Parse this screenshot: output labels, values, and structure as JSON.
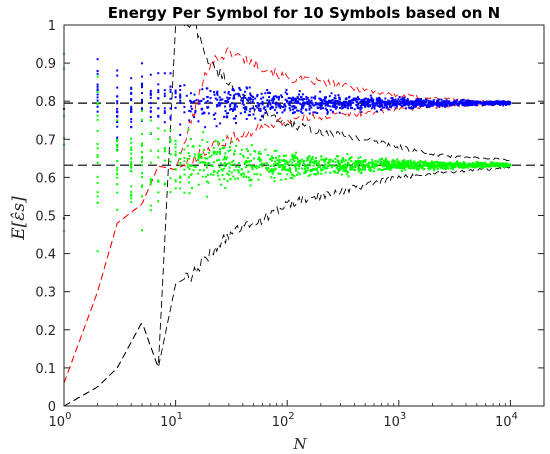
{
  "chart_data": {
    "type": "scatter",
    "title": "Energy Per Symbol for 10 Symbols based on N",
    "xlabel": "N",
    "ylabel": "E[ε̂s]",
    "xscale": "log",
    "xlim": [
      1,
      20000
    ],
    "ylim": [
      0,
      1
    ],
    "x_ticks": [
      {
        "value": 1,
        "base": "10",
        "exp": "0"
      },
      {
        "value": 10,
        "base": "10",
        "exp": "1"
      },
      {
        "value": 100,
        "base": "10",
        "exp": "2"
      },
      {
        "value": 1000,
        "base": "10",
        "exp": "3"
      },
      {
        "value": 10000,
        "base": "10",
        "exp": "4"
      }
    ],
    "y_ticks": [
      0,
      0.1,
      0.2,
      0.3,
      0.4,
      0.5,
      0.6,
      0.7,
      0.8,
      0.9,
      1
    ],
    "y_tick_labels": [
      "0",
      "0.1",
      "0.2",
      "0.3",
      "0.4",
      "0.5",
      "0.6",
      "0.7",
      "0.8",
      "0.9",
      "1"
    ],
    "reference_lines": [
      {
        "y": 0.795,
        "style": "dashed",
        "color": "#000000"
      },
      {
        "y": 0.632,
        "style": "dashed",
        "color": "#000000"
      }
    ],
    "grid": false,
    "series": [
      {
        "style": "dashed-line",
        "color": "#ff0000",
        "converges_to": 0.795,
        "x": [
          1,
          2,
          3,
          5,
          7,
          10,
          15,
          20,
          30,
          50,
          70,
          100,
          200,
          500,
          1000,
          2000,
          5000,
          10000
        ],
        "y": [
          0.06,
          0.3,
          0.48,
          0.53,
          0.63,
          0.62,
          0.78,
          0.9,
          0.93,
          0.9,
          0.88,
          0.86,
          0.85,
          0.83,
          0.815,
          0.808,
          0.8,
          0.797
        ],
        "y_lower": [
          0.06,
          0.3,
          0.48,
          0.53,
          0.63,
          0.62,
          0.65,
          0.68,
          0.7,
          0.72,
          0.74,
          0.75,
          0.76,
          0.77,
          0.78,
          0.785,
          0.79,
          0.793
        ]
      },
      {
        "style": "dashed-line",
        "color": "#000000",
        "converges_to": 0.632,
        "x": [
          1,
          2,
          3,
          5,
          7,
          10,
          15,
          20,
          30,
          50,
          70,
          100,
          200,
          500,
          1000,
          2000,
          5000,
          10000
        ],
        "y": [
          0.0,
          0.05,
          0.1,
          0.22,
          0.1,
          1.0,
          1.0,
          0.9,
          0.85,
          0.78,
          0.76,
          0.74,
          0.72,
          0.7,
          0.68,
          0.66,
          0.65,
          0.645
        ],
        "y_lower": [
          0.0,
          0.05,
          0.1,
          0.22,
          0.1,
          0.32,
          0.35,
          0.4,
          0.45,
          0.48,
          0.5,
          0.53,
          0.55,
          0.58,
          0.6,
          0.61,
          0.62,
          0.625
        ]
      },
      {
        "style": "points",
        "color": "#0000ff",
        "center": 0.795,
        "x": [
          1,
          3,
          5,
          7,
          10,
          20,
          50,
          100,
          500,
          1000,
          5000,
          10000
        ],
        "spread": [
          0.5,
          0.17,
          0.15,
          0.13,
          0.1,
          0.08,
          0.06,
          0.045,
          0.025,
          0.018,
          0.009,
          0.006
        ]
      },
      {
        "style": "points",
        "color": "#00ff00",
        "center": 0.632,
        "x": [
          1,
          3,
          5,
          7,
          10,
          20,
          50,
          100,
          500,
          1000,
          5000,
          10000
        ],
        "spread": [
          0.6,
          0.22,
          0.2,
          0.17,
          0.13,
          0.1,
          0.07,
          0.05,
          0.028,
          0.02,
          0.01,
          0.007
        ]
      }
    ]
  }
}
